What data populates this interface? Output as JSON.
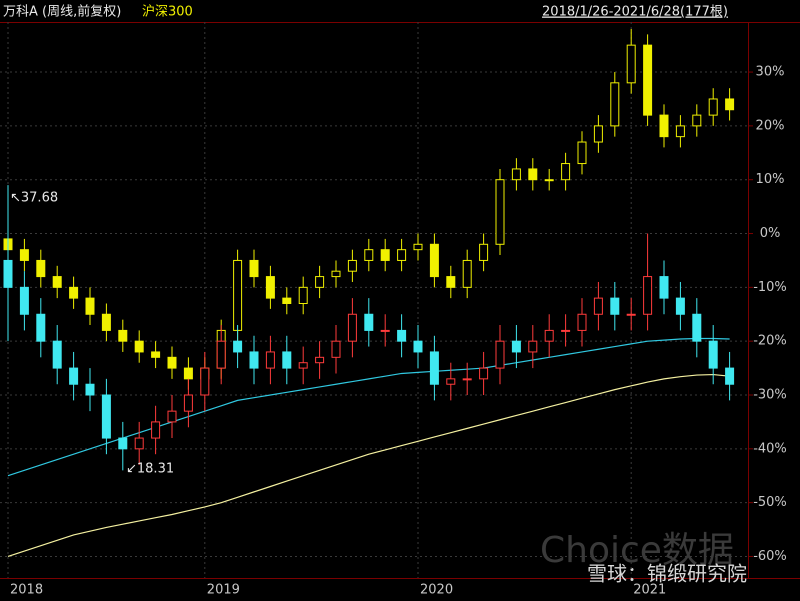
{
  "chart_data": {
    "type": "candlestick",
    "subtitle": "2018/1/26-2021/6/28(177根)",
    "categories": [
      "2018",
      null,
      null,
      null,
      null,
      null,
      null,
      null,
      null,
      null,
      null,
      null,
      "2019",
      null,
      null,
      null,
      null,
      null,
      null,
      null,
      null,
      null,
      null,
      null,
      null,
      "2020",
      null,
      null,
      null,
      null,
      null,
      null,
      null,
      null,
      null,
      null,
      null,
      null,
      "2021",
      null,
      null,
      null,
      null,
      null,
      null
    ],
    "series": [
      {
        "name": "万科A (周线,前复权)",
        "up_color": "#ff3b3b",
        "down_color": "#40e8f0",
        "open": [
          -5,
          -10,
          -15,
          -20,
          -25,
          -28,
          -30,
          -38,
          -40,
          -38,
          -35,
          -33,
          -30,
          -25,
          -20,
          -22,
          -25,
          -22,
          -25,
          -24,
          -23,
          -20,
          -15,
          -18,
          -18,
          -20,
          -22,
          -28,
          -27,
          -27,
          -25,
          -20,
          -22,
          -20,
          -18,
          -18,
          -15,
          -12,
          -15,
          -15,
          -8,
          -12,
          -15,
          -20,
          -25
        ],
        "high": [
          9,
          -7,
          -12,
          -17,
          -22,
          -25,
          -27,
          -35,
          -35,
          -32,
          -30,
          -27,
          -22,
          -17,
          -17,
          -19,
          -19,
          -19,
          -21,
          -20,
          -17,
          -12,
          -12,
          -15,
          -15,
          -17,
          -19,
          -24,
          -24,
          -22,
          -17,
          -17,
          -17,
          -15,
          -15,
          -12,
          -9,
          -9,
          -12,
          0,
          -5,
          -9,
          -12,
          -17,
          -22
        ],
        "low": [
          -20,
          -18,
          -23,
          -28,
          -31,
          -33,
          -41,
          -44,
          -43,
          -41,
          -38,
          -36,
          -33,
          -28,
          -25,
          -28,
          -28,
          -28,
          -28,
          -27,
          -26,
          -23,
          -21,
          -21,
          -23,
          -25,
          -31,
          -31,
          -30,
          -30,
          -28,
          -25,
          -25,
          -23,
          -21,
          -21,
          -18,
          -18,
          -18,
          -18,
          -15,
          -18,
          -23,
          -28,
          -31
        ],
        "close": [
          -10,
          -15,
          -20,
          -25,
          -28,
          -30,
          -38,
          -40,
          -38,
          -35,
          -33,
          -30,
          -25,
          -20,
          -22,
          -25,
          -22,
          -25,
          -24,
          -23,
          -20,
          -15,
          -18,
          -18,
          -20,
          -22,
          -28,
          -27,
          -27,
          -25,
          -20,
          -22,
          -20,
          -18,
          -18,
          -15,
          -12,
          -15,
          -15,
          -8,
          -12,
          -15,
          -20,
          -25,
          -28
        ]
      },
      {
        "name": "沪深300",
        "up_color": "#f0f000",
        "down_color": "#f0f000",
        "open": [
          -1,
          -3,
          -5,
          -8,
          -10,
          -12,
          -15,
          -18,
          -20,
          -22,
          -23,
          -25,
          -27,
          -25,
          -18,
          -5,
          -8,
          -12,
          -13,
          -10,
          -8,
          -7,
          -5,
          -3,
          -5,
          -3,
          -2,
          -8,
          -10,
          -5,
          -2,
          10,
          12,
          10,
          10,
          13,
          17,
          20,
          28,
          35,
          22,
          18,
          20,
          22,
          25
        ],
        "high": [
          1,
          -1,
          -3,
          -6,
          -8,
          -10,
          -13,
          -16,
          -18,
          -20,
          -21,
          -23,
          -23,
          -16,
          -3,
          -3,
          -6,
          -10,
          -8,
          -6,
          -5,
          -3,
          -1,
          -1,
          -1,
          0,
          0,
          -6,
          -3,
          0,
          12,
          14,
          14,
          12,
          15,
          19,
          22,
          30,
          38,
          37,
          24,
          22,
          24,
          27,
          27
        ],
        "low": [
          -5,
          -7,
          -10,
          -12,
          -14,
          -17,
          -20,
          -22,
          -24,
          -25,
          -27,
          -29,
          -29,
          -27,
          -20,
          -10,
          -14,
          -15,
          -15,
          -12,
          -10,
          -9,
          -7,
          -7,
          -7,
          -5,
          -10,
          -12,
          -12,
          -7,
          -4,
          8,
          8,
          8,
          8,
          11,
          15,
          18,
          26,
          20,
          16,
          16,
          18,
          20,
          21
        ],
        "close": [
          -3,
          -5,
          -8,
          -10,
          -12,
          -15,
          -18,
          -20,
          -22,
          -23,
          -25,
          -27,
          -25,
          -18,
          -5,
          -8,
          -12,
          -13,
          -10,
          -8,
          -7,
          -5,
          -3,
          -5,
          -3,
          -2,
          -8,
          -10,
          -5,
          -2,
          10,
          12,
          10,
          10,
          13,
          17,
          20,
          28,
          35,
          22,
          18,
          20,
          22,
          25,
          23
        ]
      }
    ],
    "lines": [
      {
        "color": "#f4f0a0",
        "values": [
          -60,
          -59,
          -58,
          -57,
          -56,
          -55.3,
          -54.6,
          -54,
          -53.4,
          -52.8,
          -52.2,
          -51.5,
          -50.8,
          -50,
          -49,
          -48,
          -47,
          -46,
          -45,
          -44,
          -43,
          -42,
          -41,
          -40.2,
          -39.4,
          -38.6,
          -37.8,
          -37,
          -36.2,
          -35.4,
          -34.6,
          -33.8,
          -33,
          -32.2,
          -31.4,
          -30.6,
          -29.8,
          -29,
          -28.3,
          -27.6,
          -27,
          -26.6,
          -26.3,
          -26.2,
          -26.5
        ]
      },
      {
        "color": "#30c8e0",
        "values": [
          -45,
          -44,
          -43,
          -42,
          -41,
          -40,
          -39,
          -38,
          -37,
          -36,
          -35,
          -34,
          -33,
          -32,
          -31,
          -30.5,
          -30,
          -29.5,
          -29,
          -28.5,
          -28,
          -27.5,
          -27,
          -26.5,
          -26,
          -25.8,
          -25.6,
          -25.4,
          -25.2,
          -25,
          -24.5,
          -24,
          -23.5,
          -23,
          -22.5,
          -22,
          -21.5,
          -21,
          -20.5,
          -20,
          -19.8,
          -19.6,
          -19.5,
          -19.5,
          -19.6
        ]
      }
    ],
    "ylim": [
      -64,
      39.3
    ],
    "yticks": [
      {
        "value": 30,
        "label": "30%"
      },
      {
        "value": 20,
        "label": "20%"
      },
      {
        "value": 10,
        "label": "10%"
      },
      {
        "value": 0,
        "label": "0%"
      },
      {
        "value": -10,
        "label": "-10%"
      },
      {
        "value": -20,
        "label": "-20%"
      },
      {
        "value": -30,
        "label": "-30%"
      },
      {
        "value": -40,
        "label": "-40%"
      },
      {
        "value": -50,
        "label": "-50%"
      },
      {
        "value": -60,
        "label": "-60%"
      }
    ],
    "grid": true,
    "annotations": [
      "↖37.68",
      "↙18.31"
    ],
    "watermark": [
      "Choice数据",
      "雪球：锦缎研究院"
    ]
  }
}
